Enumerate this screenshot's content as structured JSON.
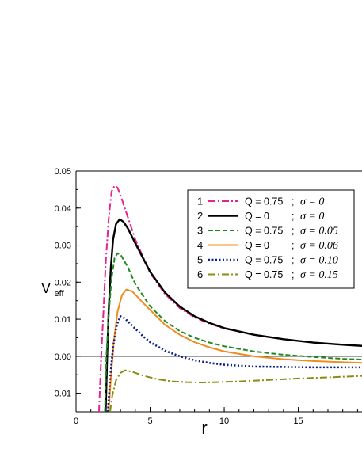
{
  "chart_data": {
    "type": "line",
    "xlabel": "r",
    "ylabel_main": "V",
    "ylabel_sub": "eff",
    "xlim": [
      0,
      19.3
    ],
    "ylim": [
      -0.015,
      0.05
    ],
    "x_ticks": [
      0,
      5,
      10,
      15
    ],
    "x_minor_step": 1,
    "y_ticks": [
      -0.01,
      0.0,
      0.01,
      0.02,
      0.03,
      0.04,
      0.05
    ],
    "y_tick_labels": [
      "-0.01",
      "0.00",
      "0.01",
      "0.02",
      "0.03",
      "0.04",
      "0.05"
    ],
    "y_minor_step": 0.005,
    "zero_line": true,
    "grid": false,
    "legend_position": "top-right",
    "series": [
      {
        "number": "1",
        "q_label": "Q = 0.75",
        "sep": ";",
        "sigma_label": "σ = 0",
        "color": "#e8228c",
        "dash": "9,3,2,3",
        "width": 2,
        "points": [
          [
            1.55,
            -0.015
          ],
          [
            1.7,
            0.0
          ],
          [
            1.85,
            0.012
          ],
          [
            2.0,
            0.025
          ],
          [
            2.2,
            0.037
          ],
          [
            2.4,
            0.0445
          ],
          [
            2.6,
            0.046
          ],
          [
            2.8,
            0.0455
          ],
          [
            3.0,
            0.0435
          ],
          [
            3.5,
            0.0375
          ],
          [
            4.0,
            0.0315
          ],
          [
            5.0,
            0.0225
          ],
          [
            6.0,
            0.0168
          ],
          [
            7.0,
            0.013
          ],
          [
            8.0,
            0.0105
          ],
          [
            9.0,
            0.0088
          ],
          [
            10.0,
            0.0075
          ],
          [
            12.0,
            0.0058
          ],
          [
            14.0,
            0.0046
          ],
          [
            16.0,
            0.0037
          ],
          [
            18.0,
            0.0031
          ],
          [
            19.3,
            0.0028
          ]
        ]
      },
      {
        "number": "2",
        "q_label": "Q = 0",
        "sep": ";",
        "sigma_label": "σ = 0",
        "color": "#000000",
        "dash": "",
        "width": 2.4,
        "points": [
          [
            2.0,
            -0.015
          ],
          [
            2.1,
            0.0
          ],
          [
            2.2,
            0.012
          ],
          [
            2.35,
            0.024
          ],
          [
            2.5,
            0.0315
          ],
          [
            2.7,
            0.0357
          ],
          [
            2.95,
            0.037
          ],
          [
            3.2,
            0.0363
          ],
          [
            3.5,
            0.0345
          ],
          [
            4.0,
            0.0305
          ],
          [
            5.0,
            0.0228
          ],
          [
            6.0,
            0.0172
          ],
          [
            7.0,
            0.0134
          ],
          [
            8.0,
            0.0108
          ],
          [
            9.0,
            0.009
          ],
          [
            10.0,
            0.0076
          ],
          [
            12.0,
            0.0058
          ],
          [
            14.0,
            0.0046
          ],
          [
            16.0,
            0.0037
          ],
          [
            18.0,
            0.0031
          ],
          [
            19.3,
            0.0028
          ]
        ]
      },
      {
        "number": "3",
        "q_label": "Q = 0.75",
        "sep": ";",
        "sigma_label": "σ = 0.05",
        "color": "#1f8a1f",
        "dash": "6,3",
        "width": 2,
        "points": [
          [
            1.95,
            -0.015
          ],
          [
            2.05,
            0.0
          ],
          [
            2.2,
            0.011
          ],
          [
            2.4,
            0.021
          ],
          [
            2.6,
            0.0265
          ],
          [
            2.8,
            0.0278
          ],
          [
            3.0,
            0.0275
          ],
          [
            3.5,
            0.024
          ],
          [
            4.0,
            0.0195
          ],
          [
            5.0,
            0.0135
          ],
          [
            6.0,
            0.0095
          ],
          [
            7.0,
            0.0068
          ],
          [
            8.0,
            0.005
          ],
          [
            9.0,
            0.0037
          ],
          [
            10.0,
            0.0027
          ],
          [
            12.0,
            0.0013
          ],
          [
            14.0,
            0.0004
          ],
          [
            16.0,
            -0.0002
          ],
          [
            18.0,
            -0.0007
          ],
          [
            19.3,
            -0.0009
          ]
        ]
      },
      {
        "number": "4",
        "q_label": "Q = 0",
        "sep": ";",
        "sigma_label": "σ = 0.06",
        "color": "#f08c1e",
        "dash": "",
        "width": 2,
        "points": [
          [
            2.2,
            -0.015
          ],
          [
            2.35,
            -0.006
          ],
          [
            2.55,
            0.004
          ],
          [
            2.8,
            0.012
          ],
          [
            3.1,
            0.0165
          ],
          [
            3.4,
            0.018
          ],
          [
            3.8,
            0.0175
          ],
          [
            4.5,
            0.0145
          ],
          [
            5.0,
            0.0125
          ],
          [
            6.0,
            0.0085
          ],
          [
            7.0,
            0.0058
          ],
          [
            8.0,
            0.0038
          ],
          [
            9.0,
            0.0024
          ],
          [
            10.0,
            0.0013
          ],
          [
            12.0,
            0.0
          ],
          [
            14.0,
            -0.0008
          ],
          [
            16.0,
            -0.0013
          ],
          [
            18.0,
            -0.0016
          ],
          [
            19.3,
            -0.0018
          ]
        ]
      },
      {
        "number": "5",
        "q_label": "Q = 0.75",
        "sep": ";",
        "sigma_label": "σ = 0.10",
        "color": "#0b1f8f",
        "dash": "2,2.5",
        "width": 2.6,
        "points": [
          [
            2.15,
            -0.015
          ],
          [
            2.3,
            -0.006
          ],
          [
            2.5,
            0.0025
          ],
          [
            2.75,
            0.0085
          ],
          [
            3.0,
            0.0108
          ],
          [
            3.3,
            0.0102
          ],
          [
            3.8,
            0.0082
          ],
          [
            4.5,
            0.0055
          ],
          [
            5.0,
            0.0038
          ],
          [
            6.0,
            0.0015
          ],
          [
            7.0,
            0.0
          ],
          [
            8.0,
            -0.0011
          ],
          [
            9.0,
            -0.0018
          ],
          [
            10.0,
            -0.0023
          ],
          [
            12.0,
            -0.0028
          ],
          [
            14.0,
            -0.0029
          ],
          [
            16.0,
            -0.003
          ],
          [
            18.0,
            -0.003
          ],
          [
            19.3,
            -0.003
          ]
        ]
      },
      {
        "number": "6",
        "q_label": "Q = 0.75",
        "sep": ";",
        "sigma_label": "σ = 0.15",
        "color": "#8c8c14",
        "dash": "9,3,2,3",
        "width": 2,
        "points": [
          [
            2.3,
            -0.015
          ],
          [
            2.45,
            -0.0105
          ],
          [
            2.7,
            -0.0065
          ],
          [
            3.0,
            -0.0045
          ],
          [
            3.3,
            -0.0038
          ],
          [
            3.8,
            -0.0042
          ],
          [
            4.5,
            -0.0052
          ],
          [
            5.5,
            -0.0062
          ],
          [
            6.5,
            -0.0068
          ],
          [
            7.5,
            -0.007
          ],
          [
            8.5,
            -0.0071
          ],
          [
            9.5,
            -0.007
          ],
          [
            11.0,
            -0.0068
          ],
          [
            13.0,
            -0.0064
          ],
          [
            15.0,
            -0.006
          ],
          [
            17.0,
            -0.0057
          ],
          [
            19.3,
            -0.0053
          ]
        ]
      }
    ]
  }
}
